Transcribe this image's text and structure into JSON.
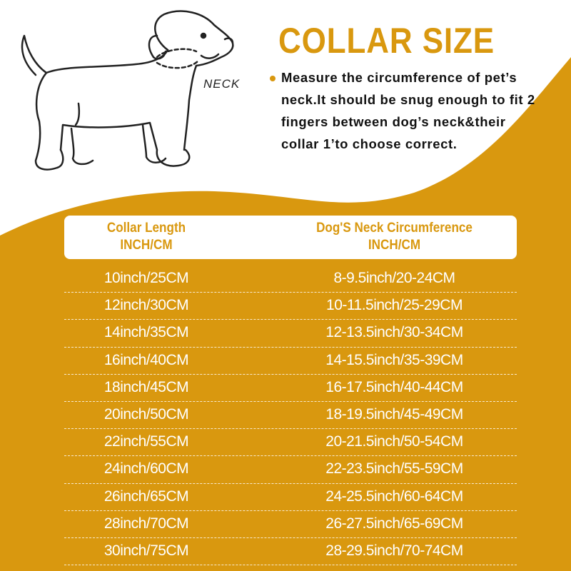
{
  "colors": {
    "accent": "#d9980f",
    "text": "#111111",
    "background": "#ffffff"
  },
  "illustration": {
    "icon": "dog-outline-illustration",
    "neck_label": "NECK"
  },
  "title": "COLLAR SIZE",
  "description": "Measure the circumference of pet’s neck.It should be snug enough to fit 2 fingers between dog’s neck&their collar 1’to choose correct.",
  "table": {
    "headers": [
      {
        "line1": "Collar Length",
        "line2": "INCH/CM"
      },
      {
        "line1": "Dog'S Neck Circumference",
        "line2": "INCH/CM"
      }
    ],
    "rows": [
      [
        "10inch/25CM",
        "8-9.5inch/20-24CM"
      ],
      [
        "12inch/30CM",
        "10-11.5inch/25-29CM"
      ],
      [
        "14inch/35CM",
        "12-13.5inch/30-34CM"
      ],
      [
        "16inch/40CM",
        "14-15.5inch/35-39CM"
      ],
      [
        "18inch/45CM",
        "16-17.5inch/40-44CM"
      ],
      [
        "20inch/50CM",
        "18-19.5inch/45-49CM"
      ],
      [
        "22inch/55CM",
        "20-21.5inch/50-54CM"
      ],
      [
        "24inch/60CM",
        "22-23.5inch/55-59CM"
      ],
      [
        "26inch/65CM",
        "24-25.5inch/60-64CM"
      ],
      [
        "28inch/70CM",
        "26-27.5inch/65-69CM"
      ],
      [
        "30inch/75CM",
        "28-29.5inch/70-74CM"
      ]
    ]
  }
}
